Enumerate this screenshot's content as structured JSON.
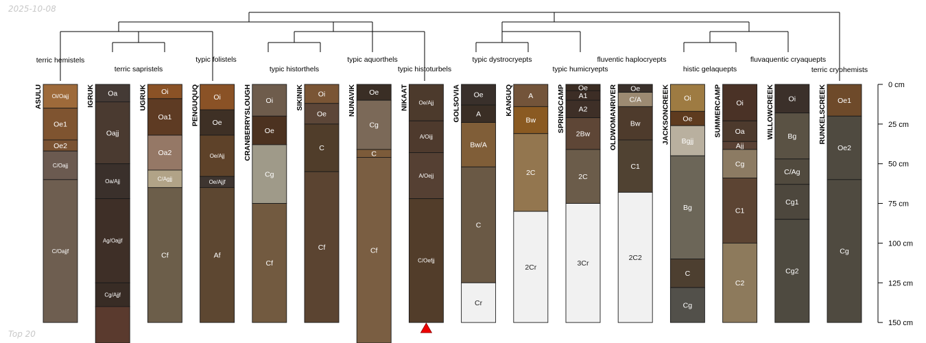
{
  "watermarks": {
    "date": "2025-10-08",
    "caption": "Top 20"
  },
  "chart_data": {
    "type": "soil-profile-sketch",
    "title": "",
    "y_axis": {
      "label_unit": "cm",
      "range": [
        0,
        150
      ],
      "ticks": [
        0,
        25,
        50,
        75,
        100,
        125,
        150
      ],
      "tick_labels": [
        "0 cm",
        "25 cm",
        "50 cm",
        "75 cm",
        "100 cm",
        "125 cm",
        "150 cm"
      ]
    },
    "truncation_marker_profile": "NIKAAT",
    "dendrogram_leaves": [
      "terric hemistels",
      "terric sapristels",
      "typic folistels",
      "typic historthels",
      "typic aquorthels",
      "typic histoturbels",
      "typic dystrocryepts",
      "typic humicryepts",
      "fluventic haplocryepts",
      "histic gelaquepts",
      "fluvaquentic cryaquepts",
      "terric cryohemists"
    ],
    "profiles": [
      {
        "name": "ASULU",
        "horizons": [
          {
            "name": "Oi/Oajj",
            "top": 0,
            "bottom": 15,
            "color": "#9E6A3A"
          },
          {
            "name": "Oe1",
            "top": 15,
            "bottom": 35,
            "color": "#7F5430"
          },
          {
            "name": "Oe2",
            "top": 35,
            "bottom": 42,
            "color": "#7A5232"
          },
          {
            "name": "C/Oajj",
            "top": 42,
            "bottom": 60,
            "color": "#6B5A50"
          },
          {
            "name": "C/Oajjf",
            "top": 60,
            "bottom": 150,
            "color": "#6E5E50"
          }
        ]
      },
      {
        "name": "IGRUK",
        "horizons": [
          {
            "name": "Oa",
            "top": 0,
            "bottom": 11,
            "color": "#443A35"
          },
          {
            "name": "Oajj",
            "top": 11,
            "bottom": 50,
            "color": "#4A3A30"
          },
          {
            "name": "Oa/Ajj",
            "top": 50,
            "bottom": 72,
            "color": "#3A302B"
          },
          {
            "name": "Ag/Oajjf",
            "top": 72,
            "bottom": 125,
            "color": "#3E2F27"
          },
          {
            "name": "Cg/Ajjf",
            "top": 125,
            "bottom": 140,
            "color": "#382C25"
          },
          {
            "name": "",
            "top": 140,
            "bottom": 165,
            "color": "#5A3A2E"
          }
        ]
      },
      {
        "name": "UGRUK",
        "horizons": [
          {
            "name": "Oi",
            "top": 0,
            "bottom": 9,
            "color": "#8A5226"
          },
          {
            "name": "Oa1",
            "top": 9,
            "bottom": 32,
            "color": "#5E3B23"
          },
          {
            "name": "Oa2",
            "top": 32,
            "bottom": 54,
            "color": "#957866"
          },
          {
            "name": "C/Agjj",
            "top": 54,
            "bottom": 65,
            "color": "#B1A387"
          },
          {
            "name": "Cf",
            "top": 65,
            "bottom": 150,
            "color": "#6C5E4A"
          }
        ]
      },
      {
        "name": "PENGUQUQ",
        "horizons": [
          {
            "name": "Oi",
            "top": 0,
            "bottom": 16,
            "color": "#8A5226"
          },
          {
            "name": "Oe",
            "top": 16,
            "bottom": 32,
            "color": "#3E3025"
          },
          {
            "name": "Oe/Ajj",
            "top": 32,
            "bottom": 58,
            "color": "#5E4229"
          },
          {
            "name": "Oe/Ajjf",
            "top": 58,
            "bottom": 65,
            "color": "#3E3530"
          },
          {
            "name": "Af",
            "top": 65,
            "bottom": 150,
            "color": "#5D4731"
          }
        ]
      },
      {
        "name": "CRANBERRYSLOUGH",
        "horizons": [
          {
            "name": "Oi",
            "top": 0,
            "bottom": 20,
            "color": "#6E5C4C"
          },
          {
            "name": "Oe",
            "top": 20,
            "bottom": 38,
            "color": "#4C3220"
          },
          {
            "name": "Cg",
            "top": 38,
            "bottom": 75,
            "color": "#9F9A89"
          },
          {
            "name": "Cf",
            "top": 75,
            "bottom": 150,
            "color": "#725A40"
          }
        ]
      },
      {
        "name": "SIKINIK",
        "horizons": [
          {
            "name": "Oi",
            "top": 0,
            "bottom": 12,
            "color": "#7A5535"
          },
          {
            "name": "Oe",
            "top": 12,
            "bottom": 25,
            "color": "#5C4638"
          },
          {
            "name": "C",
            "top": 25,
            "bottom": 55,
            "color": "#503D2A"
          },
          {
            "name": "Cf",
            "top": 55,
            "bottom": 150,
            "color": "#5B4431"
          }
        ]
      },
      {
        "name": "NUNAVIK",
        "horizons": [
          {
            "name": "Oe",
            "top": 0,
            "bottom": 10,
            "color": "#3A2E25"
          },
          {
            "name": "Cg",
            "top": 10,
            "bottom": 41,
            "color": "#7B6958"
          },
          {
            "name": "C",
            "top": 41,
            "bottom": 46,
            "color": "#7C5B3A"
          },
          {
            "name": "Cf",
            "top": 46,
            "bottom": 165,
            "color": "#7A5E42"
          }
        ]
      },
      {
        "name": "NIKAAT",
        "horizons": [
          {
            "name": "Oe/Ajj",
            "top": 0,
            "bottom": 23,
            "color": "#4C3A2C"
          },
          {
            "name": "A/Oijj",
            "top": 23,
            "bottom": 43,
            "color": "#4E3A2D"
          },
          {
            "name": "A/Oejj",
            "top": 43,
            "bottom": 72,
            "color": "#554033"
          },
          {
            "name": "C/Oefjj",
            "top": 72,
            "bottom": 150,
            "color": "#523D2A"
          }
        ]
      },
      {
        "name": "GOLSOVIA",
        "horizons": [
          {
            "name": "Oe",
            "top": 0,
            "bottom": 13,
            "color": "#39302B"
          },
          {
            "name": "A",
            "top": 13,
            "bottom": 24,
            "color": "#3A2E25"
          },
          {
            "name": "Bw/A",
            "top": 24,
            "bottom": 52,
            "color": "#805E38"
          },
          {
            "name": "C",
            "top": 52,
            "bottom": 125,
            "color": "#6A5945"
          },
          {
            "name": "Cr",
            "top": 125,
            "bottom": 150,
            "color": "#F1F1F1"
          }
        ]
      },
      {
        "name": "KANGUQ",
        "horizons": [
          {
            "name": "A",
            "top": 0,
            "bottom": 14,
            "color": "#73543A"
          },
          {
            "name": "Bw",
            "top": 14,
            "bottom": 31,
            "color": "#8A5A22"
          },
          {
            "name": "2C",
            "top": 31,
            "bottom": 80,
            "color": "#93764F"
          },
          {
            "name": "2Cr",
            "top": 80,
            "bottom": 150,
            "color": "#F1F1F1"
          }
        ]
      },
      {
        "name": "SPRINGCAMP",
        "horizons": [
          {
            "name": "Oe",
            "top": 0,
            "bottom": 4,
            "color": "#3A2C22"
          },
          {
            "name": "A1",
            "top": 4,
            "bottom": 10,
            "color": "#3C2D25"
          },
          {
            "name": "A2",
            "top": 10,
            "bottom": 21,
            "color": "#3E2F27"
          },
          {
            "name": "2Bw",
            "top": 21,
            "bottom": 41,
            "color": "#5E4636"
          },
          {
            "name": "2C",
            "top": 41,
            "bottom": 75,
            "color": "#6B5C4A"
          },
          {
            "name": "3Cr",
            "top": 75,
            "bottom": 150,
            "color": "#F1F1F1"
          }
        ]
      },
      {
        "name": "OLDWOMANRIVER",
        "horizons": [
          {
            "name": "Oe",
            "top": 0,
            "bottom": 5,
            "color": "#3A302A"
          },
          {
            "name": "C/A",
            "top": 5,
            "bottom": 14,
            "color": "#9C8A72"
          },
          {
            "name": "Bw",
            "top": 14,
            "bottom": 35,
            "color": "#4E3B2C"
          },
          {
            "name": "C1",
            "top": 35,
            "bottom": 68,
            "color": "#504232"
          },
          {
            "name": "2C2",
            "top": 68,
            "bottom": 150,
            "color": "#F1F1F1"
          }
        ]
      },
      {
        "name": "JACKSONCREEK",
        "horizons": [
          {
            "name": "Oi",
            "top": 0,
            "bottom": 17,
            "color": "#9E7B42"
          },
          {
            "name": "Oe",
            "top": 17,
            "bottom": 26,
            "color": "#5E3B1F"
          },
          {
            "name": "Bgjj",
            "top": 26,
            "bottom": 45,
            "color": "#B9B09F"
          },
          {
            "name": "Bg",
            "top": 45,
            "bottom": 110,
            "color": "#6C6658"
          },
          {
            "name": "C",
            "top": 110,
            "bottom": 128,
            "color": "#4D3F30"
          },
          {
            "name": "Cg",
            "top": 128,
            "bottom": 150,
            "color": "#52504A"
          }
        ]
      },
      {
        "name": "SUMMERCAMP",
        "horizons": [
          {
            "name": "Oi",
            "top": 0,
            "bottom": 23,
            "color": "#4A3226"
          },
          {
            "name": "Oa",
            "top": 23,
            "bottom": 36,
            "color": "#4D3A2D"
          },
          {
            "name": "Ajj",
            "top": 36,
            "bottom": 41,
            "color": "#5A4235"
          },
          {
            "name": "Cg",
            "top": 41,
            "bottom": 59,
            "color": "#8C7B63"
          },
          {
            "name": "C1",
            "top": 59,
            "bottom": 100,
            "color": "#5C4433"
          },
          {
            "name": "C2",
            "top": 100,
            "bottom": 150,
            "color": "#8D7A5C"
          }
        ]
      },
      {
        "name": "WILLOWCREEK",
        "horizons": [
          {
            "name": "Oi",
            "top": 0,
            "bottom": 18,
            "color": "#3B302A"
          },
          {
            "name": "Bg",
            "top": 18,
            "bottom": 47,
            "color": "#5A5244"
          },
          {
            "name": "C/Ag",
            "top": 47,
            "bottom": 63,
            "color": "#514A3E"
          },
          {
            "name": "Cg1",
            "top": 63,
            "bottom": 85,
            "color": "#4D473D"
          },
          {
            "name": "Cg2",
            "top": 85,
            "bottom": 150,
            "color": "#4E4A40"
          }
        ]
      },
      {
        "name": "RUNKELSCREEK",
        "horizons": [
          {
            "name": "Oe1",
            "top": 0,
            "bottom": 20,
            "color": "#6E4A2A"
          },
          {
            "name": "Oe2",
            "top": 20,
            "bottom": 60,
            "color": "#4F4A40"
          },
          {
            "name": "Cg",
            "top": 60,
            "bottom": 150,
            "color": "#4F4A40"
          }
        ]
      }
    ]
  }
}
